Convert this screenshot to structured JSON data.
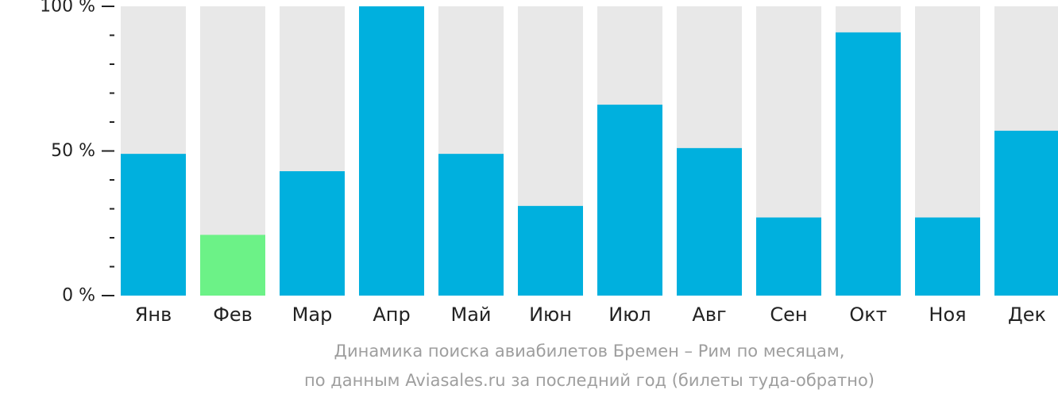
{
  "chart_data": {
    "type": "bar",
    "categories": [
      "Янв",
      "Фев",
      "Мар",
      "Апр",
      "Май",
      "Июн",
      "Июл",
      "Авг",
      "Сен",
      "Окт",
      "Ноя",
      "Дек"
    ],
    "values": [
      49,
      21,
      43,
      100,
      49,
      31,
      66,
      51,
      27,
      91,
      27,
      57
    ],
    "ylim": [
      0,
      100
    ],
    "yticks": [
      {
        "value": 0,
        "label": "0 %"
      },
      {
        "value": 50,
        "label": "50 %"
      },
      {
        "value": 100,
        "label": "100 %"
      }
    ],
    "minor_tick_step": 10,
    "highlight_index": 1,
    "colors": {
      "bar": "#00b0de",
      "highlight": "#6cf287",
      "track": "#e8e8e8",
      "axis": "#222222"
    }
  },
  "caption": {
    "line1": "Динамика поиска авиабилетов Бремен – Рим по месяцам,",
    "line2": "по данным Aviasales.ru за последний год (билеты туда-обратно)"
  }
}
